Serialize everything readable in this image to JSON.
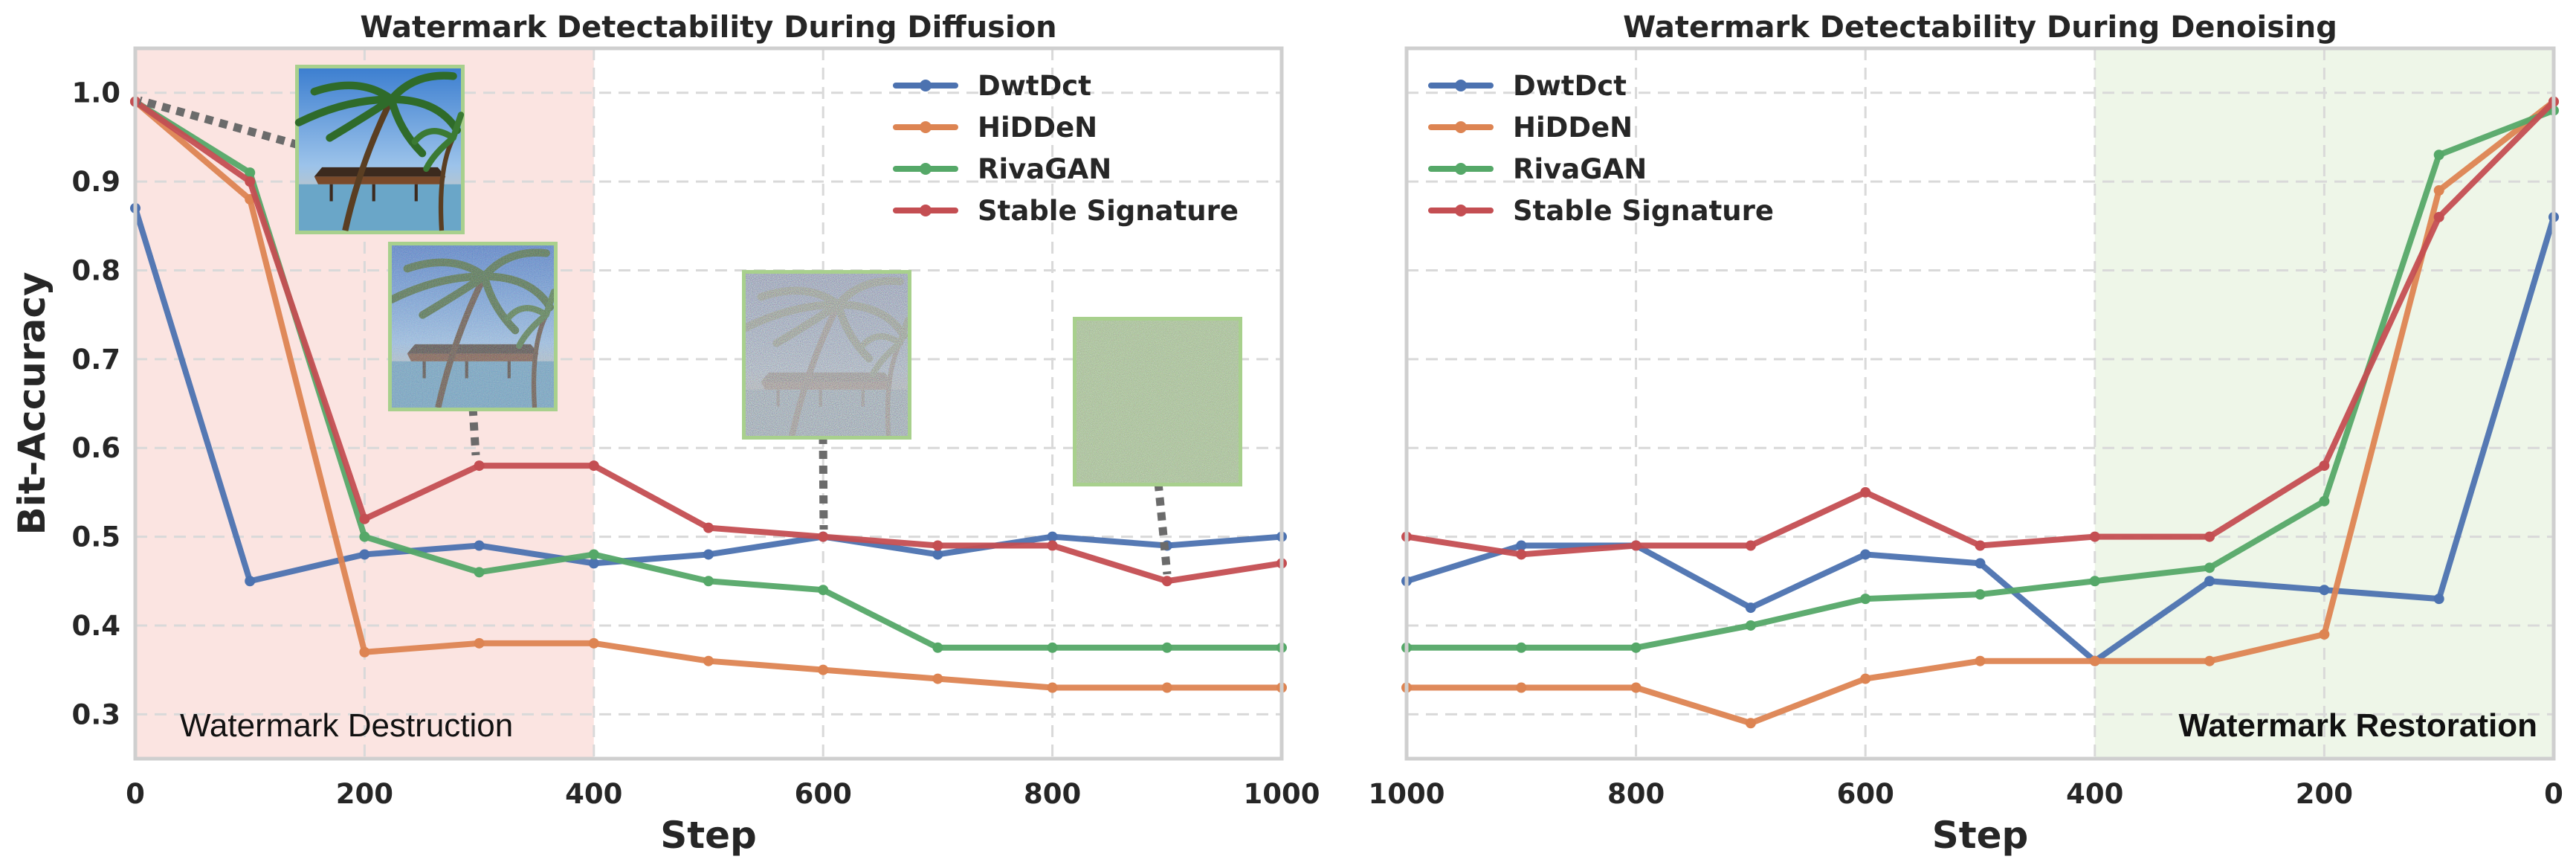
{
  "colors": {
    "DwtDct": "#4c72b0",
    "HiDDeN": "#dd8452",
    "RivaGAN": "#55a868",
    "Stable Signature": "#c44e52",
    "destruction_shade": "#fbe4e1",
    "restoration_shade": "#eef6e8",
    "thumb_border": "#a8d08d",
    "connector": "#6b6b6b"
  },
  "chart_data": [
    {
      "type": "line",
      "title": "Watermark Detectability During Diffusion",
      "xlabel": "Step",
      "ylabel": "Bit-Accuracy",
      "xlim": [
        0,
        1000
      ],
      "ylim": [
        0.25,
        1.05
      ],
      "x_reversed": false,
      "x": [
        0,
        100,
        200,
        300,
        400,
        500,
        600,
        700,
        800,
        900,
        1000
      ],
      "xticks": [
        0,
        200,
        400,
        600,
        800,
        1000
      ],
      "xtick_labels": [
        "0",
        "200",
        "400",
        "600",
        "800",
        "1000"
      ],
      "yticks": [
        0.3,
        0.4,
        0.5,
        0.6,
        0.7,
        0.8,
        0.9,
        1.0
      ],
      "ytick_labels": [
        "0.3",
        "0.4",
        "0.5",
        "0.6",
        "0.7",
        "0.8",
        "0.9",
        "1.0"
      ],
      "grid": true,
      "legend_position": "top-right",
      "shaded_region": {
        "from": 0,
        "to": 400,
        "label": "Watermark Destruction",
        "color": "destruction_shade"
      },
      "thumbnails": [
        {
          "kind": "clean",
          "anchor_x": 0,
          "anchor_y": 0.99
        },
        {
          "kind": "slightly-noisy",
          "anchor_x": 300,
          "anchor_y": 0.58
        },
        {
          "kind": "noisy",
          "anchor_x": 600,
          "anchor_y": 0.5
        },
        {
          "kind": "pure-noise",
          "anchor_x": 900,
          "anchor_y": 0.45
        }
      ],
      "series": [
        {
          "name": "DwtDct",
          "values": [
            0.87,
            0.45,
            0.48,
            0.49,
            0.47,
            0.48,
            0.5,
            0.48,
            0.5,
            0.49,
            0.5
          ]
        },
        {
          "name": "HiDDeN",
          "values": [
            0.99,
            0.88,
            0.37,
            0.38,
            0.38,
            0.36,
            0.35,
            0.34,
            0.33,
            0.33,
            0.33
          ]
        },
        {
          "name": "RivaGAN",
          "values": [
            0.99,
            0.91,
            0.5,
            0.46,
            0.48,
            0.45,
            0.44,
            0.375,
            0.375,
            0.375,
            0.375
          ]
        },
        {
          "name": "Stable Signature",
          "values": [
            0.99,
            0.9,
            0.52,
            0.58,
            0.58,
            0.51,
            0.5,
            0.49,
            0.49,
            0.45,
            0.47
          ]
        }
      ]
    },
    {
      "type": "line",
      "title": "Watermark Detectability During Denoising",
      "xlabel": "Step",
      "ylabel": "",
      "xlim": [
        1000,
        0
      ],
      "ylim": [
        0.25,
        1.05
      ],
      "x_reversed": true,
      "x": [
        1000,
        900,
        800,
        700,
        600,
        500,
        400,
        300,
        200,
        100,
        0
      ],
      "xticks": [
        1000,
        800,
        600,
        400,
        200,
        0
      ],
      "xtick_labels": [
        "1000",
        "800",
        "600",
        "400",
        "200",
        "0"
      ],
      "yticks": [
        0.3,
        0.4,
        0.5,
        0.6,
        0.7,
        0.8,
        0.9,
        1.0
      ],
      "ytick_labels": [],
      "grid": true,
      "legend_position": "top-left",
      "shaded_region": {
        "from": 400,
        "to": 0,
        "label": "Watermark Restoration",
        "color": "restoration_shade"
      },
      "thumbnails": [],
      "series": [
        {
          "name": "DwtDct",
          "values": [
            0.45,
            0.49,
            0.49,
            0.42,
            0.48,
            0.47,
            0.36,
            0.45,
            0.44,
            0.43,
            0.86
          ]
        },
        {
          "name": "HiDDeN",
          "values": [
            0.33,
            0.33,
            0.33,
            0.29,
            0.34,
            0.36,
            0.36,
            0.36,
            0.39,
            0.89,
            0.99
          ]
        },
        {
          "name": "RivaGAN",
          "values": [
            0.375,
            0.375,
            0.375,
            0.4,
            0.43,
            0.435,
            0.45,
            0.465,
            0.54,
            0.93,
            0.98
          ]
        },
        {
          "name": "Stable Signature",
          "values": [
            0.5,
            0.48,
            0.49,
            0.49,
            0.55,
            0.49,
            0.5,
            0.5,
            0.58,
            0.86,
            0.99
          ]
        }
      ]
    }
  ]
}
